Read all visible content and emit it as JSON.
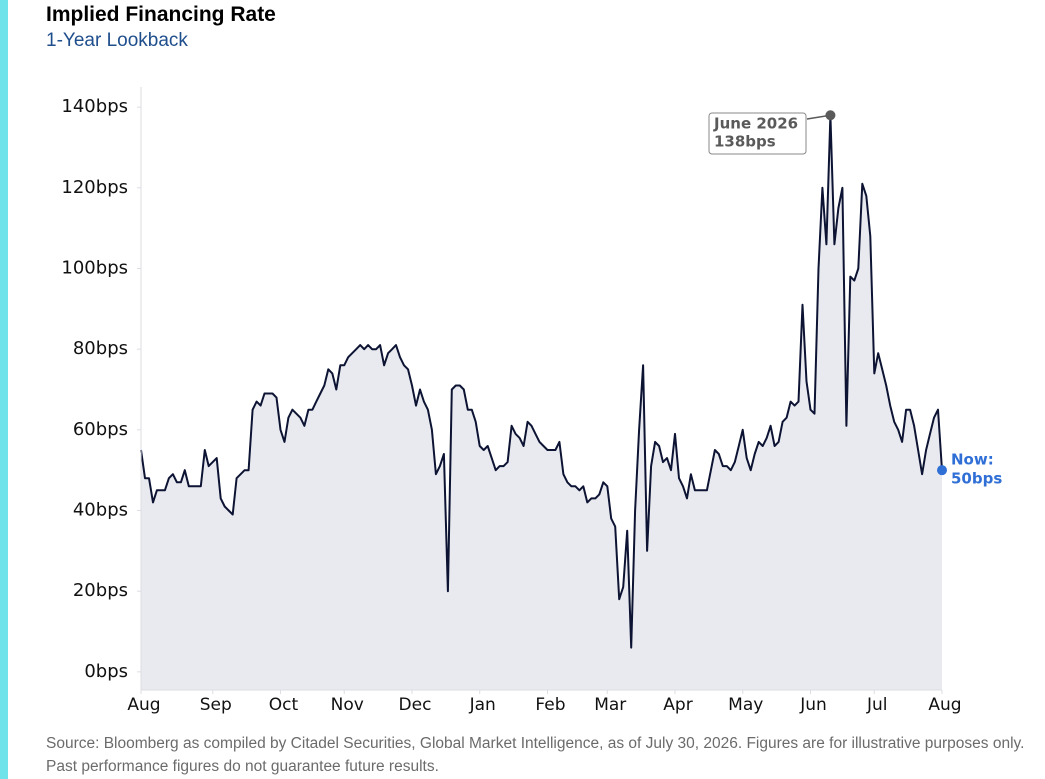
{
  "chart_data": {
    "type": "line",
    "title": "Implied Financing Rate",
    "subtitle": "1-Year Lookback",
    "source": "Source: Bloomberg as compiled by Citadel Securities, Global Market Intelligence, as of July 30, 2026. Figures are for illustrative purposes only. Past performance figures do not guarantee future results.",
    "xlim": [
      0,
      201
    ],
    "xticks": [
      {
        "value": 0,
        "label": "Aug"
      },
      {
        "value": 18,
        "label": "Sep"
      },
      {
        "value": 35,
        "label": "Oct"
      },
      {
        "value": 51,
        "label": "Nov"
      },
      {
        "value": 68,
        "label": "Dec"
      },
      {
        "value": 85,
        "label": "Jan"
      },
      {
        "value": 102,
        "label": "Feb"
      },
      {
        "value": 117,
        "label": "Mar"
      },
      {
        "value": 134,
        "label": "Apr"
      },
      {
        "value": 151,
        "label": "May"
      },
      {
        "value": 168,
        "label": "Jun"
      },
      {
        "value": 184,
        "label": "Jul"
      },
      {
        "value": 201,
        "label": "Aug"
      }
    ],
    "ylim": [
      -4.5,
      145
    ],
    "yticks": [
      {
        "value": 0,
        "label": "0bps"
      },
      {
        "value": 20,
        "label": "20bps"
      },
      {
        "value": 40,
        "label": "40bps"
      },
      {
        "value": 60,
        "label": "60bps"
      },
      {
        "value": 80,
        "label": "80bps"
      },
      {
        "value": 100,
        "label": "100bps"
      },
      {
        "value": 120,
        "label": "120bps"
      },
      {
        "value": 140,
        "label": "140bps"
      }
    ],
    "series": [
      {
        "color": "#0d1433",
        "fill": "#e9eaf0",
        "values": [
          55,
          48,
          48,
          42,
          45,
          45,
          45,
          48,
          49,
          47,
          47,
          50,
          46,
          46,
          46,
          46,
          55,
          51,
          52,
          53,
          43,
          41,
          40,
          39,
          48,
          49,
          50,
          50,
          65,
          67,
          66,
          69,
          69,
          69,
          68,
          60,
          57,
          63,
          65,
          64,
          63,
          61,
          65,
          65,
          67,
          69,
          71,
          75,
          74,
          70,
          76,
          76,
          78,
          79,
          80,
          81,
          80,
          81,
          80,
          80,
          81,
          76,
          79,
          80,
          81,
          78,
          76,
          75,
          71,
          66,
          70,
          67,
          65,
          60,
          49,
          51,
          54,
          20,
          70,
          71,
          71,
          70,
          65,
          65,
          62,
          56,
          55,
          56,
          53,
          50,
          51,
          51,
          52,
          61,
          59,
          58,
          56,
          62,
          61,
          59,
          57,
          56,
          55,
          55,
          55,
          57,
          49,
          47,
          46,
          46,
          45,
          46,
          42,
          43,
          43,
          44,
          47,
          46,
          38,
          36,
          18,
          21,
          35,
          6,
          40,
          60,
          76,
          30,
          51,
          57,
          56,
          52,
          53,
          50,
          59,
          48,
          46,
          43,
          49,
          45,
          45,
          45,
          45,
          50,
          55,
          54,
          51,
          51,
          50,
          52,
          56,
          60,
          53,
          50,
          54,
          57,
          56,
          58,
          61,
          56,
          57,
          62,
          63,
          67,
          66,
          67,
          91,
          72,
          65,
          64,
          100,
          120,
          106,
          138,
          106,
          115,
          120,
          61,
          98,
          97,
          100,
          121,
          118,
          108,
          74,
          79,
          75,
          71,
          66,
          62,
          60,
          57,
          65,
          65,
          61,
          55,
          49,
          55,
          59,
          63,
          65,
          50
        ]
      }
    ],
    "annotations": [
      {
        "text": "June 2026",
        "label": "138bps",
        "x": 173,
        "value": 138,
        "color": "#5a5a5a"
      },
      {
        "text": "Now:",
        "label": "50bps",
        "x": 201,
        "value": 50,
        "color": "#2f6fd6"
      }
    ]
  }
}
